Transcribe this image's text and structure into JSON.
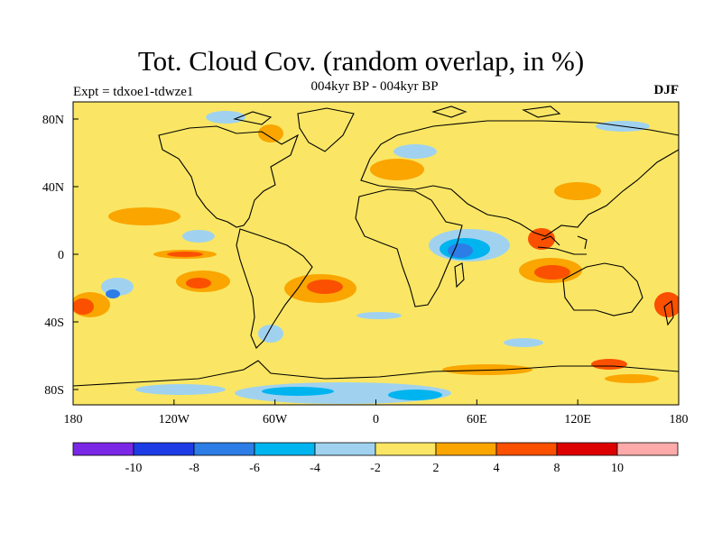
{
  "title": "Tot. Cloud Cov. (random overlap, in %)",
  "subtitle": "004kyr BP - 004kyr BP",
  "left_label": "Expt = tdxoe1-tdwze1",
  "right_label": "DJF",
  "x_ticks": [
    "180",
    "120W",
    "60W",
    "0",
    "60E",
    "120E",
    "180"
  ],
  "y_ticks": [
    "80N",
    "40N",
    "0",
    "40S",
    "80S"
  ],
  "colorbar": {
    "colors": [
      "#7a28e6",
      "#1e3ce6",
      "#2d7de6",
      "#00b4f0",
      "#a0d2f0",
      "#fae664",
      "#faa500",
      "#fa5000",
      "#dc0000",
      "#ffaaaa"
    ],
    "labels": [
      "-10",
      "-8",
      "-6",
      "-4",
      "-2",
      "2",
      "4",
      "8",
      "10"
    ]
  },
  "colors": {
    "background_field": "#fae664",
    "coastline": "#000000"
  }
}
